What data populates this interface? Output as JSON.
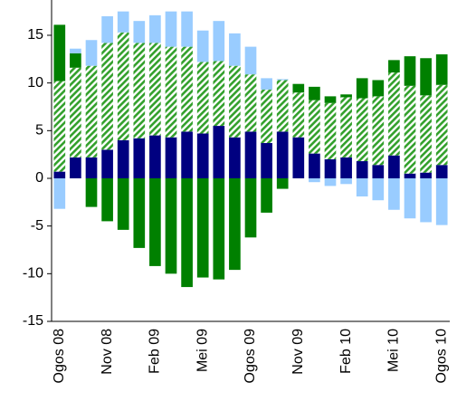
{
  "chart_data": {
    "type": "bar",
    "stacked": true,
    "categories": [
      "Ogos 08",
      null,
      null,
      "Nov 08",
      null,
      null,
      "Feb 09",
      null,
      null,
      "Mei 09",
      null,
      null,
      "Ogos 09",
      null,
      null,
      "Nov 09",
      null,
      null,
      "Feb 10",
      null,
      null,
      "Mei 10",
      null,
      null,
      "Ogos 10"
    ],
    "series": [
      {
        "color": "#000080",
        "values": [
          0.7,
          2.2,
          2.2,
          3.0,
          4.0,
          4.2,
          4.5,
          4.3,
          4.9,
          4.7,
          5.5,
          4.3,
          4.9,
          3.7,
          4.9,
          4.3,
          2.6,
          2.0,
          2.2,
          1.8,
          1.4,
          2.4,
          0.5,
          0.6,
          1.4
        ]
      },
      {
        "color": "#33a02c",
        "pattern": "hatch",
        "values": [
          9.5,
          9.4,
          9.6,
          11.2,
          11.3,
          10.0,
          9.7,
          9.5,
          8.9,
          7.5,
          6.8,
          7.5,
          6.0,
          5.6,
          5.4,
          4.7,
          5.6,
          5.9,
          6.3,
          6.6,
          7.2,
          8.7,
          9.2,
          8.1,
          8.4
        ]
      },
      {
        "color": "#008000",
        "values": [
          5.9,
          1.5,
          -3.0,
          -4.5,
          -5.4,
          -7.3,
          -9.2,
          -10.0,
          -11.4,
          -10.4,
          -10.6,
          -9.6,
          -6.2,
          -3.6,
          -1.1,
          0.9,
          1.4,
          0.7,
          0.3,
          2.1,
          1.7,
          1.3,
          3.1,
          3.9,
          3.2
        ]
      },
      {
        "color": "#99ccff",
        "values": [
          -3.2,
          0.5,
          2.7,
          2.8,
          2.2,
          2.3,
          2.9,
          3.7,
          3.7,
          3.3,
          4.2,
          3.4,
          2.9,
          1.2,
          0.1,
          0,
          -0.4,
          -0.8,
          -0.6,
          -1.9,
          -2.3,
          -3.3,
          -4.2,
          -4.6,
          -4.9
        ]
      }
    ],
    "ylim": [
      -15,
      18.7
    ],
    "yticks": [
      -15,
      -10,
      -5,
      0,
      5,
      10,
      15
    ]
  }
}
